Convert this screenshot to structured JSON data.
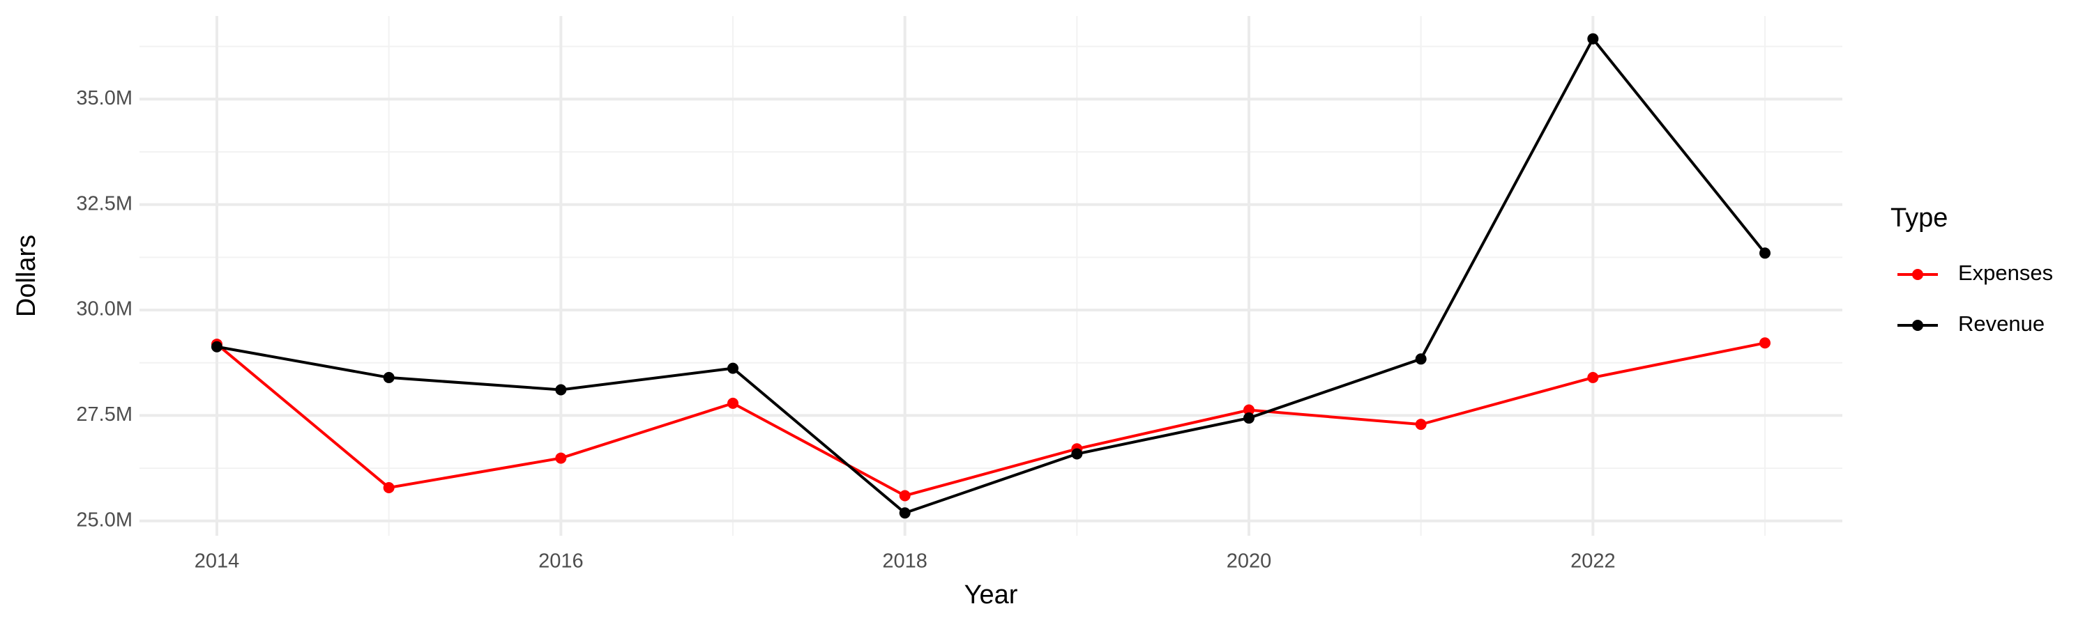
{
  "chart_data": {
    "type": "line",
    "x_label": "Year",
    "y_label": "Dollars",
    "legend_title": "Type",
    "legend_position": "right",
    "grid": true,
    "x": [
      2014,
      2015,
      2016,
      2017,
      2018,
      2019,
      2020,
      2021,
      2022,
      2023
    ],
    "series": [
      {
        "name": "Expenses",
        "color": "#ff0000",
        "values": [
          29190000,
          25790000,
          26490000,
          27790000,
          25600000,
          26710000,
          27630000,
          27290000,
          28400000,
          29220000
        ]
      },
      {
        "name": "Revenue",
        "color": "#000000",
        "values": [
          29130000,
          28400000,
          28110000,
          28620000,
          25190000,
          26590000,
          27440000,
          28840000,
          36430000,
          31350000
        ]
      }
    ],
    "xlim": [
      2013.55,
      2023.45
    ],
    "xticks": [
      2014,
      2016,
      2018,
      2020,
      2022
    ],
    "ylim": [
      24650000,
      36970000
    ],
    "yticks": [
      {
        "value": 25000000,
        "label": "25.0M"
      },
      {
        "value": 27500000,
        "label": "27.5M"
      },
      {
        "value": 30000000,
        "label": "30.0M"
      },
      {
        "value": 32500000,
        "label": "32.5M"
      },
      {
        "value": 35000000,
        "label": "35.0M"
      }
    ]
  }
}
